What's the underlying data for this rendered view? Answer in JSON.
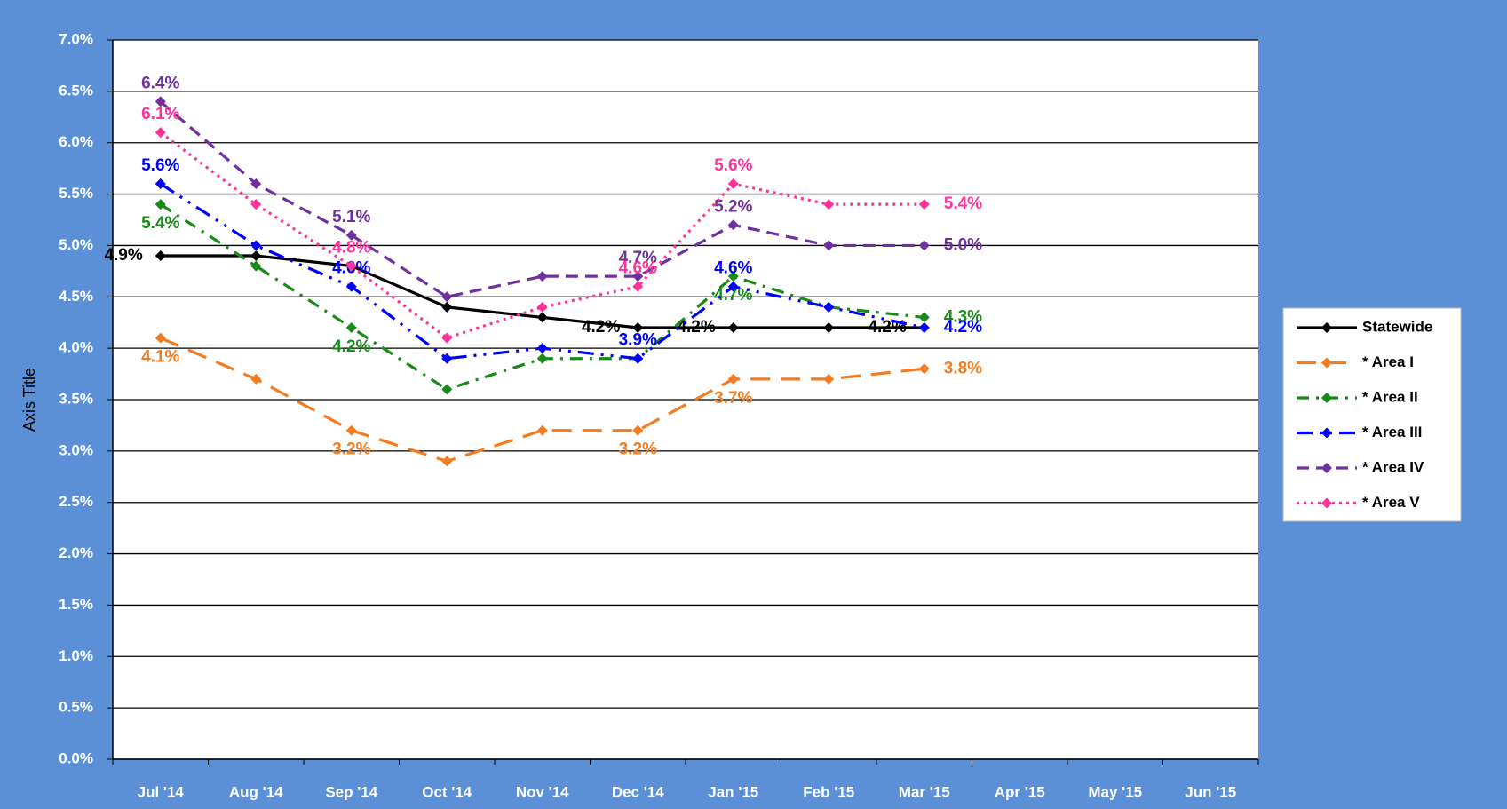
{
  "chart_data": {
    "type": "line",
    "y_axis_label": "Axis Title",
    "categories": [
      "Jul '14",
      "Aug '14",
      "Sep '14",
      "Oct '14",
      "Nov '14",
      "Dec '14",
      "Jan '15",
      "Feb '15",
      "Mar '15",
      "Apr '15",
      "May '15",
      "Jun '15"
    ],
    "ylim": [
      0,
      7
    ],
    "yticks": [
      {
        "value": 0,
        "label": "0.0%"
      },
      {
        "value": 0.5,
        "label": "0.5%"
      },
      {
        "value": 1,
        "label": "1.0%"
      },
      {
        "value": 1.5,
        "label": "1.5%"
      },
      {
        "value": 2,
        "label": "2.0%"
      },
      {
        "value": 2.5,
        "label": "2.5%"
      },
      {
        "value": 3,
        "label": "3.0%"
      },
      {
        "value": 3.5,
        "label": "3.5%"
      },
      {
        "value": 4,
        "label": "4.0%"
      },
      {
        "value": 4.5,
        "label": "4.5%"
      },
      {
        "value": 5,
        "label": "5.0%"
      },
      {
        "value": 5.5,
        "label": "5.5%"
      },
      {
        "value": 6,
        "label": "6.0%"
      },
      {
        "value": 6.5,
        "label": "6.5%"
      },
      {
        "value": 7,
        "label": "7.0%"
      }
    ],
    "grid": true,
    "legend": "right",
    "series": [
      {
        "name": "Statewide",
        "color": "#000000",
        "values": [
          4.9,
          4.9,
          4.8,
          4.4,
          4.3,
          4.2,
          4.2,
          4.2,
          4.2,
          null,
          null,
          null
        ],
        "value_labels": [
          "4.9%",
          null,
          null,
          null,
          null,
          "4.2%",
          "4.2%",
          null,
          "4.2%",
          null,
          null,
          null
        ]
      },
      {
        "name": "* Area I",
        "color": "#F47C20",
        "values": [
          4.1,
          3.7,
          3.2,
          2.9,
          3.2,
          3.2,
          3.7,
          3.7,
          3.8,
          null,
          null,
          null
        ],
        "value_labels": [
          "4.1%",
          null,
          "3.2%",
          null,
          null,
          "3.2%",
          "3.7%",
          null,
          "3.8%",
          null,
          null,
          null
        ]
      },
      {
        "name": "* Area II",
        "color": "#178A17",
        "values": [
          5.4,
          4.8,
          4.2,
          3.6,
          3.9,
          3.9,
          4.7,
          4.4,
          4.3,
          null,
          null,
          null
        ],
        "value_labels": [
          "5.4%",
          null,
          "4.2%",
          null,
          null,
          null,
          "4.7%",
          null,
          "4.3%",
          null,
          null,
          null
        ]
      },
      {
        "name": "* Area III",
        "color": "#0000FF",
        "values": [
          5.6,
          5.0,
          4.6,
          3.9,
          4.0,
          3.9,
          4.6,
          4.4,
          4.2,
          null,
          null,
          null
        ],
        "value_labels": [
          "5.6%",
          null,
          "4.6%",
          null,
          null,
          "3.9%",
          "4.6%",
          null,
          "4.2%",
          null,
          null,
          null
        ]
      },
      {
        "name": "* Area IV",
        "color": "#7030A0",
        "values": [
          6.4,
          5.6,
          5.1,
          4.5,
          4.7,
          4.7,
          5.2,
          5.0,
          5.0,
          null,
          null,
          null
        ],
        "value_labels": [
          "6.4%",
          null,
          "5.1%",
          null,
          null,
          "4.7%",
          "5.2%",
          null,
          "5.0%",
          null,
          null,
          null
        ]
      },
      {
        "name": "* Area V",
        "color": "#FF3399",
        "values": [
          6.1,
          5.4,
          4.8,
          4.1,
          4.4,
          4.6,
          5.6,
          5.4,
          5.4,
          null,
          null,
          null
        ],
        "value_labels": [
          "6.1%",
          null,
          "4.8%",
          null,
          null,
          "4.6%",
          "5.6%",
          null,
          "5.4%",
          null,
          null,
          null
        ]
      }
    ]
  }
}
